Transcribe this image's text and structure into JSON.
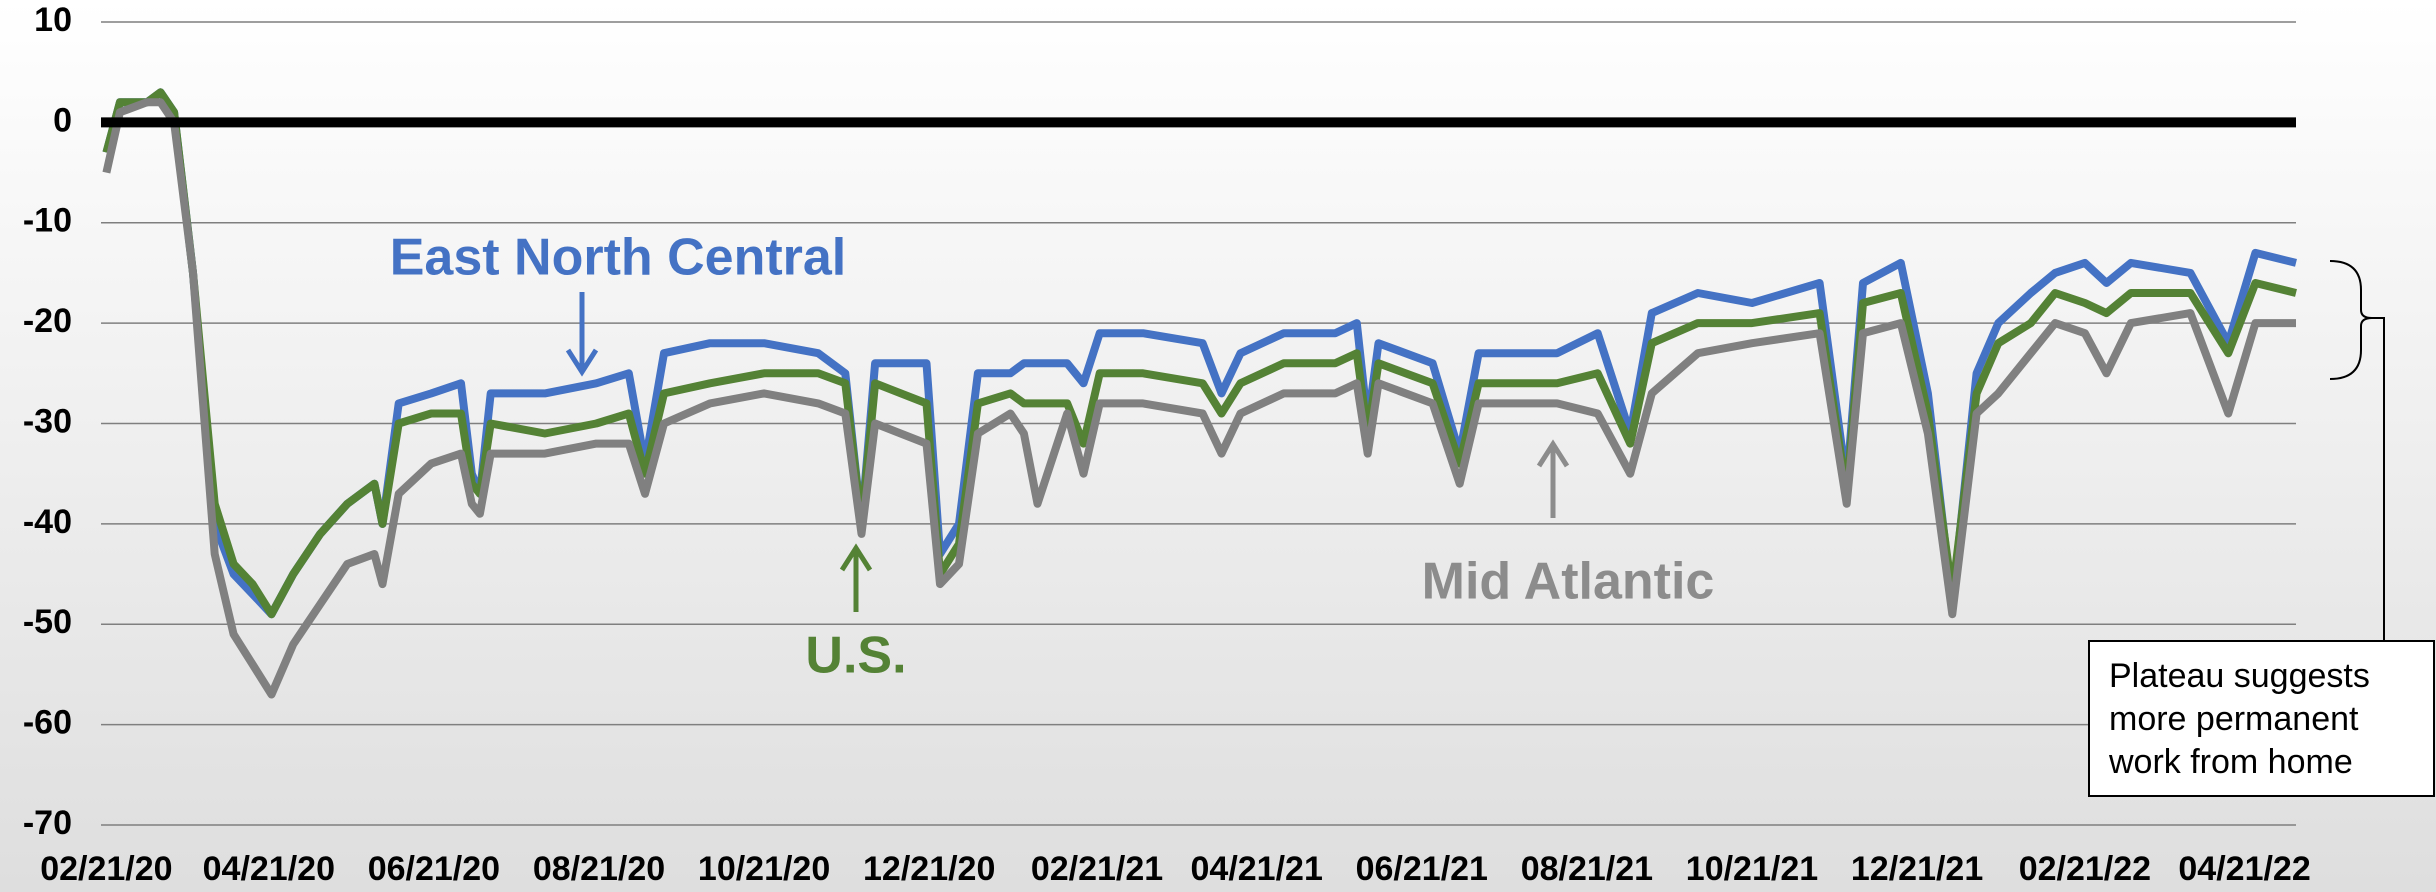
{
  "chart_data": {
    "type": "line",
    "x": [
      "02/21/20",
      "02/26/20",
      "03/07/20",
      "03/12/20",
      "03/17/20",
      "03/24/20",
      "04/01/20",
      "04/08/20",
      "04/15/20",
      "04/22/20",
      "04/30/20",
      "05/10/20",
      "05/20/20",
      "05/30/20",
      "06/02/20",
      "06/08/20",
      "06/20/20",
      "07/01/20",
      "07/05/20",
      "07/08/20",
      "07/12/20",
      "08/01/20",
      "08/20/20",
      "09/01/20",
      "09/07/20",
      "09/14/20",
      "10/01/20",
      "10/21/20",
      "11/10/20",
      "11/20/20",
      "11/26/20",
      "12/01/20",
      "12/20/20",
      "12/25/20",
      "01/01/21",
      "01/08/21",
      "01/20/21",
      "01/25/21",
      "01/30/21",
      "02/10/21",
      "02/16/21",
      "02/22/21",
      "03/10/21",
      "04/01/21",
      "04/08/21",
      "04/15/21",
      "05/01/21",
      "05/20/21",
      "05/28/21",
      "06/01/21",
      "06/05/21",
      "06/25/21",
      "07/05/21",
      "07/12/21",
      "08/10/21",
      "08/25/21",
      "09/06/21",
      "09/14/21",
      "10/01/21",
      "10/21/21",
      "11/15/21",
      "11/25/21",
      "12/01/21",
      "12/15/21",
      "12/25/21",
      "01/03/22",
      "01/12/22",
      "01/20/22",
      "02/01/22",
      "02/10/22",
      "02/21/22",
      "03/01/22",
      "03/10/22",
      "04/01/22",
      "04/15/22",
      "04/25/22",
      "05/10/22"
    ],
    "series": [
      {
        "name": "East North Central",
        "color": "#4472c4",
        "values": [
          -3,
          2,
          2,
          3,
          1,
          -15,
          -40,
          -45,
          -47,
          -49,
          -45,
          -41,
          -38,
          -36,
          -40,
          -28,
          -27,
          -26,
          -35,
          -37,
          -27,
          -27,
          -26,
          -25,
          -34,
          -23,
          -22,
          -22,
          -23,
          -25,
          -40,
          -24,
          -24,
          -43,
          -40,
          -25,
          -25,
          -24,
          -24,
          -24,
          -26,
          -21,
          -21,
          -22,
          -27,
          -23,
          -21,
          -21,
          -20,
          -30,
          -22,
          -24,
          -33,
          -23,
          -23,
          -21,
          -31,
          -19,
          -17,
          -18,
          -16,
          -36,
          -16,
          -14,
          -27,
          -48,
          -25,
          -20,
          -17,
          -15,
          -14,
          -16,
          -14,
          -15,
          -22,
          -13,
          -14
        ]
      },
      {
        "name": "U.S.",
        "color": "#548235",
        "values": [
          -3,
          2,
          2,
          3,
          1,
          -15,
          -38,
          -44,
          -46,
          -49,
          -45,
          -41,
          -38,
          -36,
          -40,
          -30,
          -29,
          -29,
          -36,
          -37,
          -30,
          -31,
          -30,
          -29,
          -35,
          -27,
          -26,
          -25,
          -25,
          -26,
          -40,
          -26,
          -28,
          -45,
          -42,
          -28,
          -27,
          -28,
          -28,
          -28,
          -32,
          -25,
          -25,
          -26,
          -29,
          -26,
          -24,
          -24,
          -23,
          -31,
          -24,
          -26,
          -34,
          -26,
          -26,
          -25,
          -32,
          -22,
          -20,
          -20,
          -19,
          -37,
          -18,
          -17,
          -29,
          -47,
          -27,
          -22,
          -20,
          -17,
          -18,
          -19,
          -17,
          -17,
          -23,
          -16,
          -17
        ]
      },
      {
        "name": "Mid Atlantic",
        "color": "#808080",
        "values": [
          -5,
          1,
          2,
          2,
          0,
          -15,
          -43,
          -51,
          -54,
          -57,
          -52,
          -48,
          -44,
          -43,
          -46,
          -37,
          -34,
          -33,
          -38,
          -39,
          -33,
          -33,
          -32,
          -32,
          -37,
          -30,
          -28,
          -27,
          -28,
          -29,
          -41,
          -30,
          -32,
          -46,
          -44,
          -31,
          -29,
          -31,
          -38,
          -29,
          -35,
          -28,
          -28,
          -29,
          -33,
          -29,
          -27,
          -27,
          -26,
          -33,
          -26,
          -28,
          -36,
          -28,
          -28,
          -29,
          -35,
          -27,
          -23,
          -22,
          -21,
          -38,
          -21,
          -20,
          -31,
          -49,
          -29,
          -27,
          -23,
          -20,
          -21,
          -25,
          -20,
          -19,
          -29,
          -20,
          -20
        ]
      }
    ],
    "xticks": [
      "02/21/20",
      "04/21/20",
      "06/21/20",
      "08/21/20",
      "10/21/20",
      "12/21/20",
      "02/21/21",
      "04/21/21",
      "06/21/21",
      "08/21/21",
      "10/21/21",
      "12/21/21",
      "02/21/22",
      "04/21/22"
    ],
    "xlim": [
      "02/19/20",
      "05/10/22"
    ],
    "ylim": [
      -70,
      10
    ],
    "yticks": [
      10,
      0,
      -10,
      -20,
      -30,
      -40,
      -50,
      -60,
      -70
    ],
    "grid": true,
    "zero_line": true,
    "annotation": [
      "Plateau suggests",
      "more permanent",
      "work from home"
    ]
  }
}
